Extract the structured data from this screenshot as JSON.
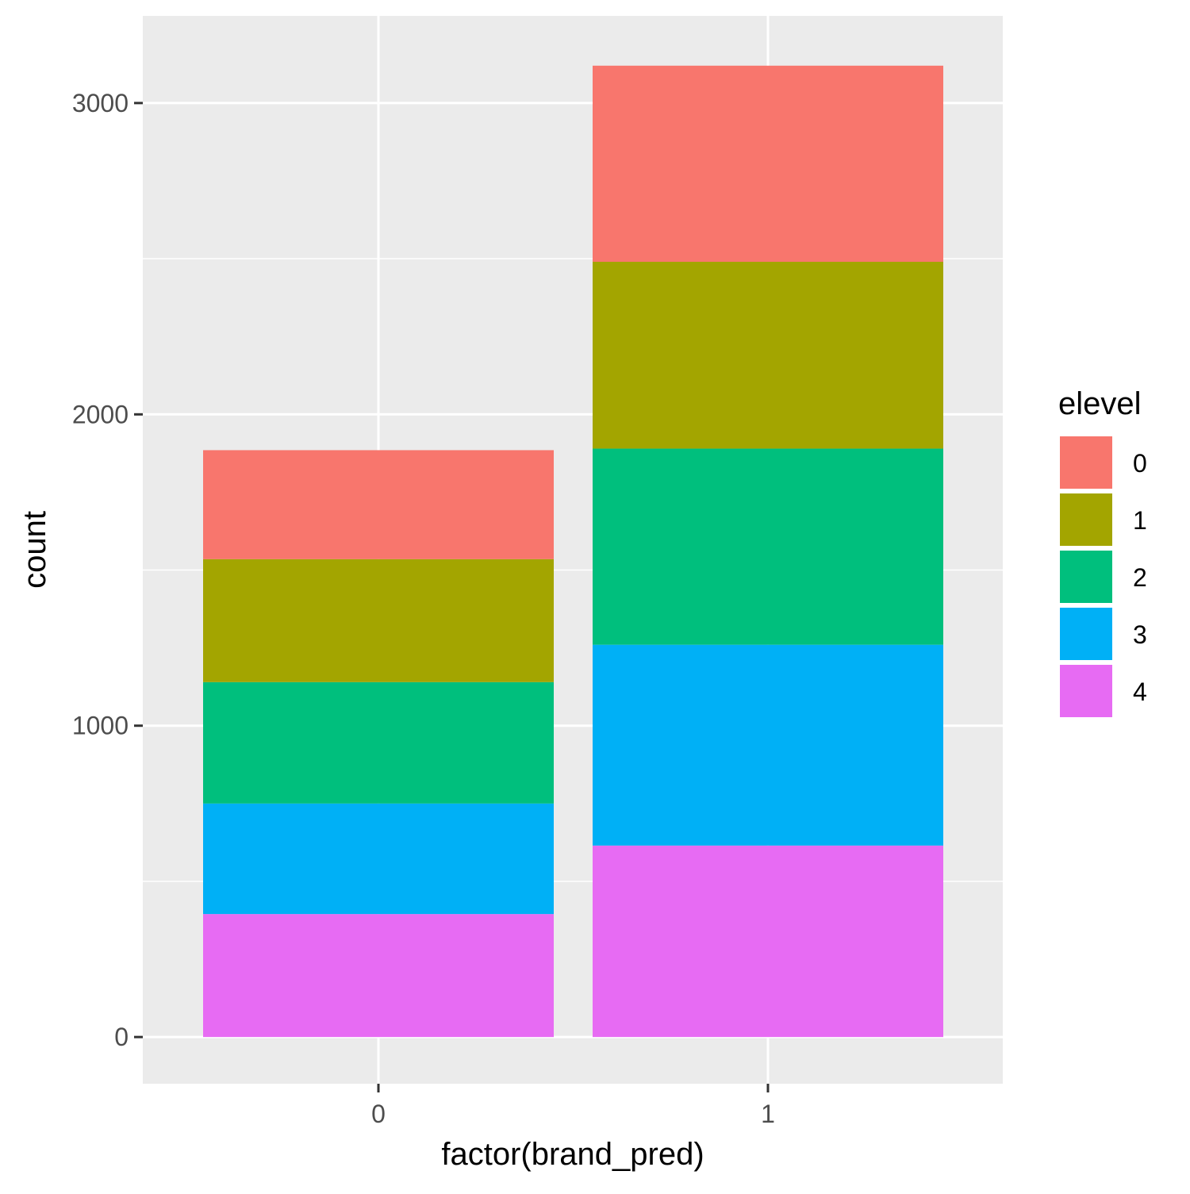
{
  "chart_data": {
    "type": "bar",
    "stacked": true,
    "categories": [
      "0",
      "1"
    ],
    "xlabel": "factor(brand_pred)",
    "ylabel": "count",
    "ylim": [
      -150,
      3280
    ],
    "yticks": [
      0,
      1000,
      2000,
      3000
    ],
    "grid": true,
    "legend": {
      "title": "elevel",
      "position": "right"
    },
    "series": [
      {
        "name": "0",
        "color": "#F8766D",
        "values": [
          350,
          630
        ]
      },
      {
        "name": "1",
        "color": "#A3A500",
        "values": [
          395,
          600
        ]
      },
      {
        "name": "2",
        "color": "#00BF7D",
        "values": [
          390,
          630
        ]
      },
      {
        "name": "3",
        "color": "#00B0F6",
        "values": [
          355,
          645
        ]
      },
      {
        "name": "4",
        "color": "#E76BF3",
        "values": [
          395,
          615
        ]
      }
    ],
    "stack_order_bottom_to_top": [
      "4",
      "3",
      "2",
      "1",
      "0"
    ]
  }
}
